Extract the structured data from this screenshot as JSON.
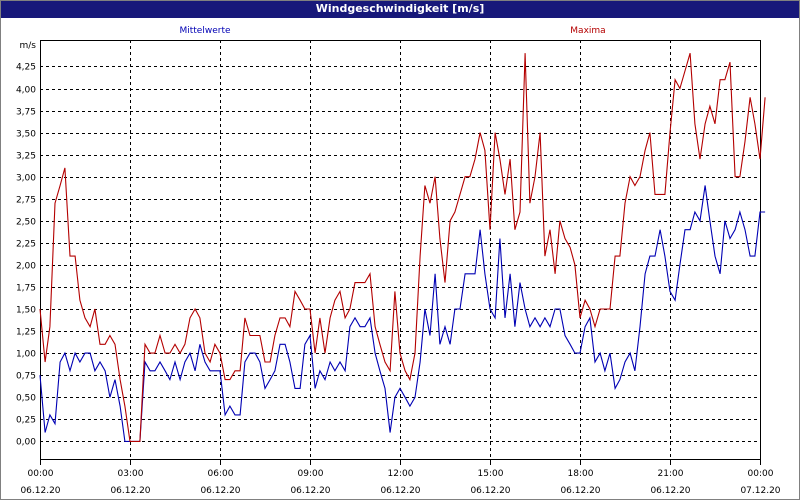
{
  "window": {
    "title": "Windgeschwindigkeit [m/s]"
  },
  "chart_data": {
    "type": "line",
    "title": "Windgeschwindigkeit [m/s]",
    "ylabel": "m/s",
    "xlabel": "",
    "ylim": [
      -0.2,
      4.55
    ],
    "grid": true,
    "legend": "top",
    "y_ticks": [
      "0,00",
      "0,25",
      "0,50",
      "0,75",
      "1,00",
      "1,25",
      "1,50",
      "1,75",
      "2,00",
      "2,25",
      "2,50",
      "2,75",
      "3,00",
      "3,25",
      "3,50",
      "3,75",
      "4,00",
      "4,25"
    ],
    "y_tick_values": [
      0,
      0.25,
      0.5,
      0.75,
      1,
      1.25,
      1.5,
      1.75,
      2,
      2.25,
      2.5,
      2.75,
      3,
      3.25,
      3.5,
      3.75,
      4,
      4.25
    ],
    "x_ticks": [
      {
        "time": "00:00",
        "date": "06.12.20",
        "hour": 0
      },
      {
        "time": "03:00",
        "date": "06.12.20",
        "hour": 3
      },
      {
        "time": "06:00",
        "date": "06.12.20",
        "hour": 6
      },
      {
        "time": "09:00",
        "date": "06.12.20",
        "hour": 9
      },
      {
        "time": "12:00",
        "date": "06.12.20",
        "hour": 12
      },
      {
        "time": "15:00",
        "date": "06.12.20",
        "hour": 15
      },
      {
        "time": "18:00",
        "date": "06.12.20",
        "hour": 18
      },
      {
        "time": "21:00",
        "date": "06.12.20",
        "hour": 21
      },
      {
        "time": "00:00",
        "date": "07.12.20",
        "hour": 24
      }
    ],
    "x_range_hours": [
      0,
      24
    ],
    "series": [
      {
        "name": "Mittelwerte",
        "color": "#0000b4",
        "points": [
          [
            0.0,
            0.75
          ],
          [
            0.17,
            0.1
          ],
          [
            0.33,
            0.3
          ],
          [
            0.5,
            0.2
          ],
          [
            0.67,
            0.9
          ],
          [
            0.83,
            1.0
          ],
          [
            1.0,
            0.8
          ],
          [
            1.17,
            1.0
          ],
          [
            1.33,
            0.9
          ],
          [
            1.5,
            1.0
          ],
          [
            1.67,
            1.0
          ],
          [
            1.83,
            0.8
          ],
          [
            2.0,
            0.9
          ],
          [
            2.17,
            0.8
          ],
          [
            2.33,
            0.5
          ],
          [
            2.5,
            0.7
          ],
          [
            2.67,
            0.4
          ],
          [
            2.83,
            0.0
          ],
          [
            3.0,
            0.0
          ],
          [
            3.17,
            0.0
          ],
          [
            3.33,
            0.0
          ],
          [
            3.5,
            0.9
          ],
          [
            3.67,
            0.8
          ],
          [
            3.83,
            0.8
          ],
          [
            4.0,
            0.9
          ],
          [
            4.17,
            0.8
          ],
          [
            4.33,
            0.7
          ],
          [
            4.5,
            0.9
          ],
          [
            4.67,
            0.7
          ],
          [
            4.83,
            0.9
          ],
          [
            5.0,
            1.0
          ],
          [
            5.17,
            0.8
          ],
          [
            5.33,
            1.1
          ],
          [
            5.5,
            0.9
          ],
          [
            5.67,
            0.8
          ],
          [
            5.83,
            0.8
          ],
          [
            6.0,
            0.8
          ],
          [
            6.17,
            0.3
          ],
          [
            6.33,
            0.4
          ],
          [
            6.5,
            0.3
          ],
          [
            6.67,
            0.3
          ],
          [
            6.83,
            0.9
          ],
          [
            7.0,
            1.0
          ],
          [
            7.17,
            1.0
          ],
          [
            7.33,
            0.9
          ],
          [
            7.5,
            0.6
          ],
          [
            7.67,
            0.7
          ],
          [
            7.83,
            0.8
          ],
          [
            8.0,
            1.1
          ],
          [
            8.17,
            1.1
          ],
          [
            8.33,
            0.9
          ],
          [
            8.5,
            0.6
          ],
          [
            8.67,
            0.6
          ],
          [
            8.83,
            1.1
          ],
          [
            9.0,
            1.2
          ],
          [
            9.17,
            0.6
          ],
          [
            9.33,
            0.8
          ],
          [
            9.5,
            0.7
          ],
          [
            9.67,
            0.9
          ],
          [
            9.83,
            0.8
          ],
          [
            10.0,
            0.9
          ],
          [
            10.17,
            0.8
          ],
          [
            10.33,
            1.3
          ],
          [
            10.5,
            1.4
          ],
          [
            10.67,
            1.3
          ],
          [
            10.83,
            1.3
          ],
          [
            11.0,
            1.4
          ],
          [
            11.17,
            1.0
          ],
          [
            11.33,
            0.8
          ],
          [
            11.5,
            0.6
          ],
          [
            11.67,
            0.1
          ],
          [
            11.83,
            0.5
          ],
          [
            12.0,
            0.6
          ],
          [
            12.17,
            0.5
          ],
          [
            12.33,
            0.4
          ],
          [
            12.5,
            0.5
          ],
          [
            12.67,
            0.9
          ],
          [
            12.83,
            1.5
          ],
          [
            13.0,
            1.2
          ],
          [
            13.17,
            1.9
          ],
          [
            13.33,
            1.1
          ],
          [
            13.5,
            1.3
          ],
          [
            13.67,
            1.1
          ],
          [
            13.83,
            1.5
          ],
          [
            14.0,
            1.5
          ],
          [
            14.17,
            1.9
          ],
          [
            14.33,
            1.9
          ],
          [
            14.5,
            1.9
          ],
          [
            14.67,
            2.4
          ],
          [
            14.83,
            1.9
          ],
          [
            15.0,
            1.5
          ],
          [
            15.17,
            1.4
          ],
          [
            15.33,
            2.3
          ],
          [
            15.5,
            1.4
          ],
          [
            15.67,
            1.9
          ],
          [
            15.83,
            1.3
          ],
          [
            16.0,
            1.8
          ],
          [
            16.17,
            1.5
          ],
          [
            16.33,
            1.3
          ],
          [
            16.5,
            1.4
          ],
          [
            16.67,
            1.3
          ],
          [
            16.83,
            1.4
          ],
          [
            17.0,
            1.3
          ],
          [
            17.17,
            1.5
          ],
          [
            17.33,
            1.5
          ],
          [
            17.5,
            1.2
          ],
          [
            17.67,
            1.1
          ],
          [
            17.83,
            1.0
          ],
          [
            18.0,
            1.0
          ],
          [
            18.17,
            1.3
          ],
          [
            18.33,
            1.4
          ],
          [
            18.5,
            0.9
          ],
          [
            18.67,
            1.0
          ],
          [
            18.83,
            0.8
          ],
          [
            19.0,
            1.0
          ],
          [
            19.17,
            0.6
          ],
          [
            19.33,
            0.7
          ],
          [
            19.5,
            0.9
          ],
          [
            19.67,
            1.0
          ],
          [
            19.83,
            0.8
          ],
          [
            20.0,
            1.3
          ],
          [
            20.17,
            1.9
          ],
          [
            20.33,
            2.1
          ],
          [
            20.5,
            2.1
          ],
          [
            20.67,
            2.4
          ],
          [
            20.83,
            2.1
          ],
          [
            21.0,
            1.7
          ],
          [
            21.17,
            1.6
          ],
          [
            21.33,
            2.0
          ],
          [
            21.5,
            2.4
          ],
          [
            21.67,
            2.4
          ],
          [
            21.83,
            2.6
          ],
          [
            22.0,
            2.5
          ],
          [
            22.17,
            2.9
          ],
          [
            22.33,
            2.5
          ],
          [
            22.5,
            2.1
          ],
          [
            22.67,
            1.9
          ],
          [
            22.83,
            2.5
          ],
          [
            23.0,
            2.3
          ],
          [
            23.17,
            2.4
          ],
          [
            23.33,
            2.6
          ],
          [
            23.5,
            2.4
          ],
          [
            23.67,
            2.1
          ],
          [
            23.83,
            2.1
          ],
          [
            24.0,
            2.6
          ],
          [
            24.17,
            2.6
          ]
        ]
      },
      {
        "name": "Maxima",
        "color": "#b40000",
        "points": [
          [
            0.0,
            1.5
          ],
          [
            0.17,
            0.9
          ],
          [
            0.33,
            1.3
          ],
          [
            0.5,
            2.7
          ],
          [
            0.67,
            2.9
          ],
          [
            0.83,
            3.1
          ],
          [
            1.0,
            2.1
          ],
          [
            1.17,
            2.1
          ],
          [
            1.33,
            1.6
          ],
          [
            1.5,
            1.4
          ],
          [
            1.67,
            1.3
          ],
          [
            1.83,
            1.5
          ],
          [
            2.0,
            1.1
          ],
          [
            2.17,
            1.1
          ],
          [
            2.33,
            1.2
          ],
          [
            2.5,
            1.1
          ],
          [
            2.67,
            0.7
          ],
          [
            2.83,
            0.4
          ],
          [
            3.0,
            0.0
          ],
          [
            3.17,
            0.0
          ],
          [
            3.33,
            0.0
          ],
          [
            3.5,
            1.1
          ],
          [
            3.67,
            1.0
          ],
          [
            3.83,
            1.0
          ],
          [
            4.0,
            1.2
          ],
          [
            4.17,
            1.0
          ],
          [
            4.33,
            1.0
          ],
          [
            4.5,
            1.1
          ],
          [
            4.67,
            1.0
          ],
          [
            4.83,
            1.1
          ],
          [
            5.0,
            1.4
          ],
          [
            5.17,
            1.5
          ],
          [
            5.33,
            1.4
          ],
          [
            5.5,
            1.0
          ],
          [
            5.67,
            0.9
          ],
          [
            5.83,
            1.1
          ],
          [
            6.0,
            1.0
          ],
          [
            6.17,
            0.7
          ],
          [
            6.33,
            0.7
          ],
          [
            6.5,
            0.8
          ],
          [
            6.67,
            0.8
          ],
          [
            6.83,
            1.4
          ],
          [
            7.0,
            1.2
          ],
          [
            7.17,
            1.2
          ],
          [
            7.33,
            1.2
          ],
          [
            7.5,
            0.9
          ],
          [
            7.67,
            0.9
          ],
          [
            7.83,
            1.2
          ],
          [
            8.0,
            1.4
          ],
          [
            8.17,
            1.4
          ],
          [
            8.33,
            1.3
          ],
          [
            8.5,
            1.7
          ],
          [
            8.67,
            1.6
          ],
          [
            8.83,
            1.5
          ],
          [
            9.0,
            1.5
          ],
          [
            9.17,
            1.0
          ],
          [
            9.33,
            1.4
          ],
          [
            9.5,
            1.0
          ],
          [
            9.67,
            1.4
          ],
          [
            9.83,
            1.6
          ],
          [
            10.0,
            1.7
          ],
          [
            10.17,
            1.4
          ],
          [
            10.33,
            1.5
          ],
          [
            10.5,
            1.8
          ],
          [
            10.67,
            1.8
          ],
          [
            10.83,
            1.8
          ],
          [
            11.0,
            1.9
          ],
          [
            11.17,
            1.3
          ],
          [
            11.33,
            1.1
          ],
          [
            11.5,
            0.9
          ],
          [
            11.67,
            0.8
          ],
          [
            11.83,
            1.7
          ],
          [
            12.0,
            1.0
          ],
          [
            12.17,
            0.8
          ],
          [
            12.33,
            0.7
          ],
          [
            12.5,
            1.0
          ],
          [
            12.67,
            2.1
          ],
          [
            12.83,
            2.9
          ],
          [
            13.0,
            2.7
          ],
          [
            13.17,
            3.0
          ],
          [
            13.33,
            2.3
          ],
          [
            13.5,
            1.8
          ],
          [
            13.67,
            2.5
          ],
          [
            13.83,
            2.6
          ],
          [
            14.0,
            2.8
          ],
          [
            14.17,
            3.0
          ],
          [
            14.33,
            3.0
          ],
          [
            14.5,
            3.2
          ],
          [
            14.67,
            3.5
          ],
          [
            14.83,
            3.3
          ],
          [
            15.0,
            2.4
          ],
          [
            15.17,
            3.5
          ],
          [
            15.33,
            3.2
          ],
          [
            15.5,
            2.8
          ],
          [
            15.67,
            3.2
          ],
          [
            15.83,
            2.4
          ],
          [
            16.0,
            2.6
          ],
          [
            16.17,
            4.4
          ],
          [
            16.33,
            2.7
          ],
          [
            16.5,
            3.0
          ],
          [
            16.67,
            3.5
          ],
          [
            16.83,
            2.1
          ],
          [
            17.0,
            2.4
          ],
          [
            17.17,
            1.9
          ],
          [
            17.33,
            2.5
          ],
          [
            17.5,
            2.3
          ],
          [
            17.67,
            2.2
          ],
          [
            17.83,
            2.0
          ],
          [
            18.0,
            1.4
          ],
          [
            18.17,
            1.6
          ],
          [
            18.33,
            1.5
          ],
          [
            18.5,
            1.3
          ],
          [
            18.67,
            1.5
          ],
          [
            18.83,
            1.5
          ],
          [
            19.0,
            1.5
          ],
          [
            19.17,
            2.1
          ],
          [
            19.33,
            2.1
          ],
          [
            19.5,
            2.7
          ],
          [
            19.67,
            3.0
          ],
          [
            19.83,
            2.9
          ],
          [
            20.0,
            3.0
          ],
          [
            20.17,
            3.3
          ],
          [
            20.33,
            3.5
          ],
          [
            20.5,
            2.8
          ],
          [
            20.67,
            2.8
          ],
          [
            20.83,
            2.8
          ],
          [
            21.0,
            3.5
          ],
          [
            21.17,
            4.1
          ],
          [
            21.33,
            4.0
          ],
          [
            21.5,
            4.2
          ],
          [
            21.67,
            4.4
          ],
          [
            21.83,
            3.6
          ],
          [
            22.0,
            3.2
          ],
          [
            22.17,
            3.6
          ],
          [
            22.33,
            3.8
          ],
          [
            22.5,
            3.6
          ],
          [
            22.67,
            4.1
          ],
          [
            22.83,
            4.1
          ],
          [
            23.0,
            4.3
          ],
          [
            23.17,
            3.0
          ],
          [
            23.33,
            3.0
          ],
          [
            23.5,
            3.4
          ],
          [
            23.67,
            3.9
          ],
          [
            23.83,
            3.6
          ],
          [
            24.0,
            3.2
          ],
          [
            24.17,
            3.9
          ]
        ]
      }
    ]
  }
}
